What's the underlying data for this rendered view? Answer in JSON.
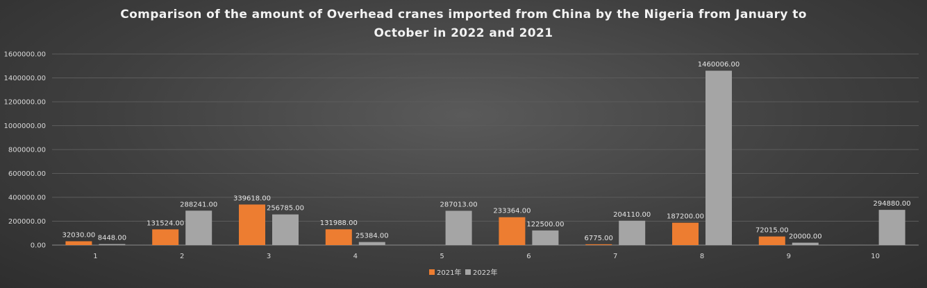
{
  "chart_data": {
    "type": "bar",
    "title_lines": [
      "Comparison of the amount of Overhead cranes imported from China by the Nigeria from January to",
      "October in 2022 and 2021"
    ],
    "categories": [
      "1",
      "2",
      "3",
      "4",
      "5",
      "6",
      "7",
      "8",
      "9",
      "10"
    ],
    "series": [
      {
        "name": "2021年",
        "color": "#ED7D31",
        "values": [
          32030.0,
          131524.0,
          339618.0,
          131988.0,
          null,
          233364.0,
          6775.0,
          187200.0,
          72015.0,
          null
        ],
        "labels": [
          "32030.00",
          "131524.00",
          "339618.00",
          "131988.00",
          "",
          "233364.00",
          "6775.00",
          "187200.00",
          "72015.00",
          ""
        ]
      },
      {
        "name": "2022年",
        "color": "#A5A5A5",
        "values": [
          8448.0,
          288241.0,
          256785.0,
          25384.0,
          287013.0,
          122500.0,
          204110.0,
          1460006.0,
          20000.0,
          294880.0
        ],
        "labels": [
          "8448.00",
          "288241.00",
          "256785.00",
          "25384.00",
          "287013.00",
          "122500.00",
          "204110.00",
          "1460006.00",
          "20000.00",
          "294880.00"
        ]
      }
    ],
    "y_ticks": [
      "0.00",
      "200000.00",
      "400000.00",
      "600000.00",
      "800000.00",
      "1000000.00",
      "1200000.00",
      "1400000.00",
      "1600000.00"
    ],
    "ylim": [
      0,
      1600000
    ],
    "grid": true,
    "legend_position": "bottom"
  }
}
